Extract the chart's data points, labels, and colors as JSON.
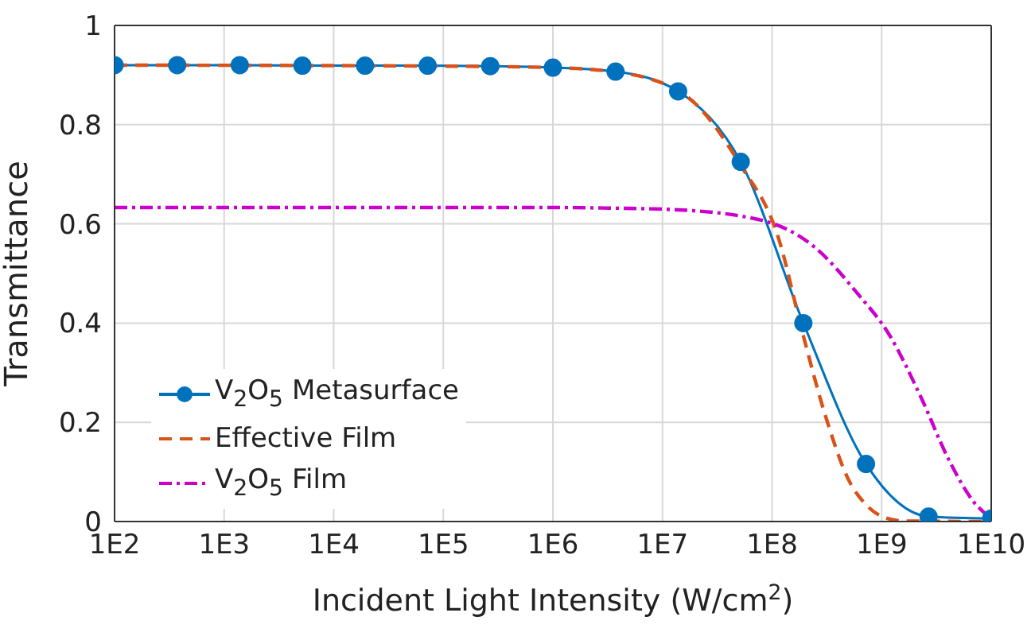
{
  "chart_data": {
    "type": "line",
    "xlabel": "Incident Light Intensity (W/cm$^{2}$)",
    "ylabel": "Transmittance",
    "log": "x",
    "xlim": [
      100,
      10000000000
    ],
    "ylim": [
      0,
      1
    ],
    "xticks": [
      {
        "value": 100,
        "label": "1E2"
      },
      {
        "value": 1000,
        "label": "1E3"
      },
      {
        "value": 10000,
        "label": "1E4"
      },
      {
        "value": 100000,
        "label": "1E5"
      },
      {
        "value": 1000000,
        "label": "1E6"
      },
      {
        "value": 10000000,
        "label": "1E7"
      },
      {
        "value": 100000000,
        "label": "1E8"
      },
      {
        "value": 1000000000,
        "label": "1E9"
      },
      {
        "value": 10000000000,
        "label": "1E10"
      }
    ],
    "yticks": [
      0,
      0.2,
      0.4,
      0.6,
      0.8,
      1
    ],
    "grid": true,
    "legend": "bottom left",
    "series": [
      {
        "name": "V$_{2}$O$_{5}$ Metasurface",
        "color": "#0072bd",
        "marker": "circle",
        "line_style": "solid",
        "x": [
          100,
          373,
          1389,
          5179,
          19307,
          71969,
          268270,
          1000000,
          3730000,
          13900000,
          51800000,
          193000000,
          720000000,
          2680000000,
          10000000000
        ],
        "values": [
          0.92,
          0.92,
          0.92,
          0.919,
          0.919,
          0.919,
          0.918,
          0.915,
          0.907,
          0.867,
          0.725,
          0.4,
          0.116,
          0.01,
          0.006
        ]
      },
      {
        "name": "Effective Film",
        "color": "#d95319",
        "marker": "none",
        "line_style": "dashed",
        "x": [
          100,
          100000,
          1000000,
          3800000,
          15500000,
          51000000,
          115000000,
          190000000,
          310000000,
          510000000,
          680000000,
          1070000000,
          1660000000,
          10000000000
        ],
        "values": [
          0.92,
          0.918,
          0.915,
          0.906,
          0.862,
          0.72,
          0.57,
          0.38,
          0.21,
          0.08,
          0.04,
          0.008,
          0.001,
          0
        ]
      },
      {
        "name": "V$_{2}$O$_{5}$ Film",
        "color": "#cc00cc",
        "marker": "none",
        "line_style": "dashdot",
        "x": [
          100,
          1000000,
          2900000,
          12000000,
          81000000,
          245000000,
          600000000,
          1170000000,
          2290000000,
          4070000000,
          6900000000,
          10000000000
        ],
        "values": [
          0.633,
          0.633,
          0.632,
          0.629,
          0.607,
          0.553,
          0.46,
          0.377,
          0.25,
          0.126,
          0.04,
          0.006
        ]
      }
    ]
  }
}
